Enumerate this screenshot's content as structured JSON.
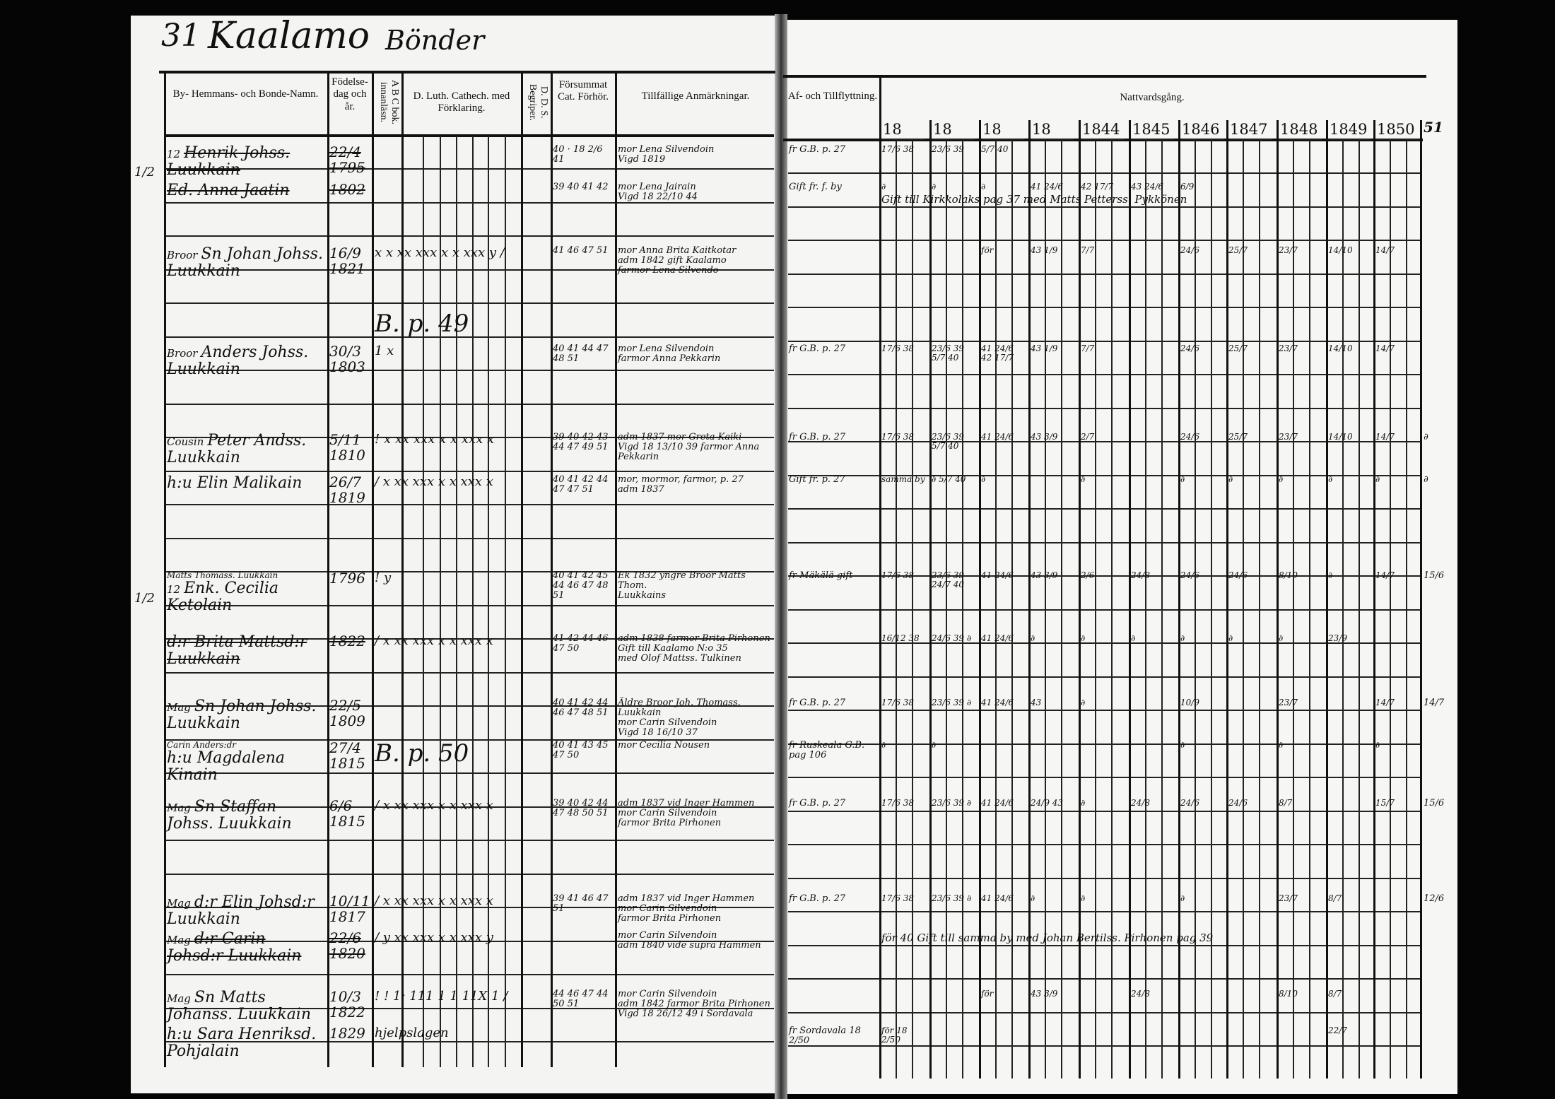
{
  "page_header": {
    "page_number": "31",
    "village": "Kaalamo",
    "category": "Bönder"
  },
  "columns": {
    "name": "By- Hemmans- och Bonde-Namn.",
    "birth": "Födelse-dag och år.",
    "abc": "A B C bok. innanläsn.",
    "catechism": "D. Luth. Cathech. med Förklaring.",
    "dds": "D. D. S. Begriper.",
    "missed": "Försummat Cat. Förhör.",
    "remarks": "Tillfällige Anmärkningar.",
    "moving": "Af- och Tillflyttning.",
    "communion": "Nattvardsgång.",
    "years": [
      "18",
      "18",
      "18",
      "18",
      "1844",
      "1845",
      "1846",
      "1847",
      "1848",
      "1849",
      "1850"
    ],
    "margin_year": "51"
  },
  "entries": [
    {
      "prefix": "12",
      "name": "Henrik Johss. Luukkain",
      "struck": true,
      "birth": "22/4 1795",
      "reading": "",
      "missed": "40 · 18 2/6 41",
      "remarks": [
        "mor Lena Silvendoin",
        "Vigd 1819"
      ],
      "moving": "fr G.B. p. 27",
      "communion": [
        "17/6 38",
        "23/6 39",
        "5/7 40",
        "",
        "",
        "",
        "",
        "",
        "",
        "",
        ""
      ],
      "margin": "",
      "fraction": "1/2"
    },
    {
      "prefix": "",
      "name": "Ed. Anna Jaatin",
      "struck": true,
      "birth": "1802",
      "reading": "",
      "missed": "39 40 41 42",
      "remarks": [
        "mor Lena Jairain",
        "Vigd 18 22/10 44"
      ],
      "moving": "Gift fr. f. by",
      "communion": [
        "∂",
        "∂",
        "∂",
        "41 24/6",
        "42 17/7",
        "43 24/6",
        "6/9",
        "",
        "",
        "",
        ""
      ],
      "margin": "",
      "fraction": "",
      "note": "Gift till Kirkkolaks pag 37 med Matts Petterss. Pykkönen"
    },
    {
      "prefix": "Broor",
      "name": "Sn Johan Johss. Luukkain",
      "struck": false,
      "birth": "16/9 1821",
      "reading": "x x  xx xxx x  x xxx y  /",
      "missed": "41 46 47 51",
      "remarks": [
        "mor Anna Brita Kaitkotar",
        "adm 1842 gift Kaalamo",
        "farmor Lena Silvendo"
      ],
      "moving": "",
      "communion": [
        "",
        "",
        "för",
        "43 1/9",
        "7/7",
        "",
        "24/6",
        "25/7",
        "23/7",
        "14/10",
        "14/7"
      ],
      "margin": "",
      "fraction": ""
    },
    {
      "prefix": "",
      "name": "",
      "struck": false,
      "birth": "",
      "reading": "B. p. 49",
      "missed": "",
      "remarks": [],
      "moving": "",
      "communion": [
        "",
        "",
        "",
        "",
        "",
        "",
        "",
        "",
        "",
        "",
        ""
      ],
      "margin": "",
      "fraction": ""
    },
    {
      "prefix": "Broor",
      "name": "Anders Johss. Luukkain",
      "struck": false,
      "birth": "30/3 1803",
      "reading": "1 x",
      "missed": "40 41 44 47 48 51",
      "remarks": [
        "mor Lena Silvendoin",
        "farmor Anna Pekkarin"
      ],
      "moving": "fr G.B. p. 27",
      "communion": [
        "17/6 38",
        "23/6 39 5/7 40",
        "41 24/6 42 17/7",
        "43 1/9",
        "7/7",
        "",
        "24/6",
        "25/7",
        "23/7",
        "14/10",
        "14/7"
      ],
      "margin": "",
      "fraction": ""
    },
    {
      "prefix": "Cousin",
      "name": "Peter Andss. Luukkain",
      "struck": false,
      "birth": "5/11 1810",
      "reading": "! x  xx xxx x  x xxx x",
      "missed": "39 40 42 43 44 47 49 51",
      "remarks": [
        "adm 1837 mor Greta Kaiki",
        "Vigd 18 13/10 39 farmor Anna Pekkarin"
      ],
      "moving": "fr G.B. p. 27",
      "communion": [
        "17/6 38",
        "23/6 39 5/7 40",
        "41 24/6",
        "43 3/9",
        "2/7",
        "",
        "24/6",
        "25/7",
        "23/7",
        "14/10",
        "14/7"
      ],
      "margin": "∂",
      "fraction": ""
    },
    {
      "prefix": "",
      "name": "h:u Elin Malikain",
      "struck": false,
      "birth": "26/7 1819",
      "reading": "/ x  xx xxx x  x xxx x",
      "missed": "40 41 42 44 47 47 51",
      "remarks": [
        "mor, mormor, farmor, p. 27",
        "adm 1837"
      ],
      "moving": "Gift fr. p. 27",
      "communion": [
        "samma by",
        "∂ 5/7 40",
        "∂",
        "",
        "∂",
        "",
        "∂",
        "∂",
        "∂",
        "∂",
        "∂"
      ],
      "margin": "∂",
      "fraction": ""
    },
    {
      "prefix": "12",
      "name": "Enk. Cecilia Ketolain",
      "struck": false,
      "birth": "1796",
      "reading": "! y",
      "missed": "40 41 42 45 44 46 47 48 51",
      "remarks": [
        "Ek 1832 yngre Broor Matts Thom.",
        "Luukkains"
      ],
      "moving": "fr Mäkälä gift",
      "communion": [
        "17/6 38",
        "23/6 39 24/7 40",
        "41 24/6",
        "43 3/9",
        "2/6",
        "24/8",
        "24/6",
        "24/6",
        "8/10",
        "∂",
        "14/7"
      ],
      "margin": "15/6",
      "fraction": "1/2",
      "annotation": "Matts Thomass. Luukkain"
    },
    {
      "prefix": "",
      "name": "d:r Brita Mattsd:r Luukkain",
      "struck": true,
      "birth": "1822",
      "reading": "/ x  xx xxx x  x xxx x",
      "missed": "41 42 44 46 47 50",
      "remarks": [
        "adm 1838 farmor Brita Pirhonen",
        "Gift till Kaalamo N:o 35",
        "med Olof Mattss. Tulkinen"
      ],
      "moving": "",
      "communion": [
        "16/12 38",
        "24/6 39 ∂",
        "41 24/6",
        "∂",
        "∂",
        "∂",
        "∂",
        "∂",
        "∂",
        "23/9",
        ""
      ],
      "margin": "",
      "fraction": ""
    },
    {
      "prefix": "Mag",
      "name": "Sn Johan Johss. Luukkain",
      "struck": false,
      "birth": "22/5 1809",
      "reading": "",
      "missed": "40 41 42 44 46 47 48 51",
      "remarks": [
        "Äldre Broor Joh. Thomass. Luukkain",
        "mor Carin Silvendoin",
        "Vigd 18 16/10 37"
      ],
      "moving": "fr G.B. p. 27",
      "communion": [
        "17/6 38",
        "23/6 39 ∂",
        "41 24/6",
        "43",
        "∂",
        "",
        "10/9",
        "",
        "23/7",
        "",
        "14/7"
      ],
      "margin": "14/7",
      "fraction": ""
    },
    {
      "prefix": "",
      "name": "h:u Magdalena Kinain",
      "struck": false,
      "birth": "27/4 1815",
      "reading": "B. p. 50",
      "missed": "40 41 43 45 47 50",
      "remarks": [
        "mor Cecilia Nousen"
      ],
      "moving": "fr Ruskeala G.B. pag 106",
      "communion": [
        "∂",
        "∂",
        "",
        "",
        "",
        "",
        "∂",
        "",
        "∂",
        "",
        "∂"
      ],
      "margin": "",
      "fraction": "",
      "annotation": "Carin Anders:dr"
    },
    {
      "prefix": "Mag",
      "name": "Sn Staffan Johss. Luukkain",
      "struck": false,
      "birth": "6/6 1815",
      "reading": "/ x  xx xxx x  x xxx x",
      "missed": "39 40 42 44 47 48 50 51",
      "remarks": [
        "adm 1837 vid Inger Hammen",
        "mor Carin Silvendoin",
        "farmor Brita Pirhonen"
      ],
      "moving": "fr G.B. p. 27",
      "communion": [
        "17/6 38",
        "23/6 39 ∂",
        "41 24/6",
        "24/9 43",
        "∂",
        "24/8",
        "24/6",
        "24/6",
        "8/7",
        "",
        "15/7"
      ],
      "margin": "15/6",
      "fraction": ""
    },
    {
      "prefix": "Mag",
      "name": "d:r Elin Johsd:r Luukkain",
      "struck": false,
      "birth": "10/11 1817",
      "reading": "/ x  xx xxx x  x xxx x",
      "missed": "39 41 46 47 51",
      "remarks": [
        "adm 1837 vid Inger Hammen",
        "mor Carin Silvendoin",
        "farmor Brita Pirhonen"
      ],
      "moving": "fr G.B. p. 27",
      "communion": [
        "17/6 38",
        "23/6 39 ∂",
        "41 24/6",
        "∂",
        "∂",
        "",
        "∂",
        "",
        "23/7",
        "8/7",
        ""
      ],
      "margin": "12/6",
      "fraction": ""
    },
    {
      "prefix": "Mag",
      "name": "d:r Carin Johsd:r Luukkain",
      "struck": true,
      "birth": "22/6 1820",
      "reading": "/ y  xx xxx x  x xxx y",
      "missed": "",
      "remarks": [
        "mor Carin Silvendoin",
        "adm 1840 vide supra Hammen"
      ],
      "moving": "",
      "communion": [
        "",
        "",
        "",
        "",
        "",
        "",
        "",
        "",
        "",
        "",
        ""
      ],
      "margin": "",
      "fraction": "",
      "note": "för 40 Gift till samma by med Johan Bertilss. Pirhonen pag 39"
    },
    {
      "prefix": "Mag",
      "name": "Sn Matts Johanss. Luukkain",
      "struck": false,
      "birth": "10/3 1822",
      "reading": "! !  1: 111 1  1 11X 1 /",
      "missed": "44 46 47 44 50 51",
      "remarks": [
        "mor Carin Silvendoin",
        "adm 1842 farmor Brita Pirhonen",
        "Vigd 18 26/12 49 i Sordavala"
      ],
      "moving": "",
      "communion": [
        "",
        "",
        "för",
        "43 3/9",
        "",
        "24/8",
        "",
        "",
        "8/10",
        "8/7",
        ""
      ],
      "margin": "",
      "fraction": ""
    },
    {
      "prefix": "",
      "name": "h:u Sara Henriksd. Pohjalain",
      "struck": false,
      "birth": "1829",
      "reading": "hjelpslagen",
      "missed": "",
      "remarks": [],
      "moving": "fr Sordavala 18 2/50",
      "communion": [
        "för 18 2/50",
        "",
        "",
        "",
        "",
        "",
        "",
        "",
        "",
        "22/7",
        ""
      ],
      "margin": "",
      "fraction": ""
    }
  ]
}
